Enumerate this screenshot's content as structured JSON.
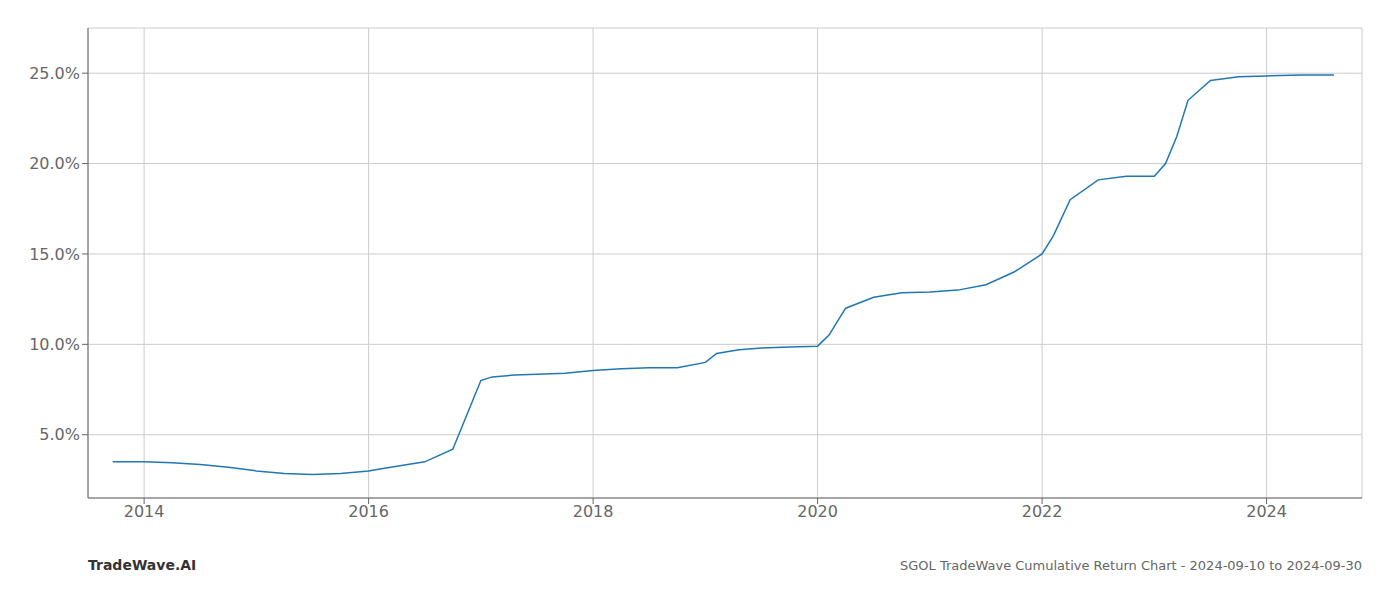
{
  "chart_data": {
    "type": "line",
    "title": "SGOL TradeWave Cumulative Return Chart - 2024-09-10 to 2024-09-30",
    "annotations": [
      "TradeWave.AI"
    ],
    "color": "#2077b4",
    "grid": true,
    "x": [
      2013.72,
      2014.0,
      2014.25,
      2014.5,
      2014.75,
      2015.0,
      2015.25,
      2015.5,
      2015.75,
      2016.0,
      2016.1,
      2016.5,
      2016.75,
      2017.0,
      2017.1,
      2017.3,
      2017.5,
      2017.75,
      2018.0,
      2018.25,
      2018.5,
      2018.75,
      2019.0,
      2019.1,
      2019.3,
      2019.5,
      2019.75,
      2020.0,
      2020.1,
      2020.25,
      2020.5,
      2020.75,
      2021.0,
      2021.25,
      2021.5,
      2021.75,
      2022.0,
      2022.1,
      2022.25,
      2022.5,
      2022.75,
      2023.0,
      2023.1,
      2023.2,
      2023.3,
      2023.5,
      2023.75,
      2024.0,
      2024.3,
      2024.6
    ],
    "values": [
      3.5,
      3.5,
      3.45,
      3.35,
      3.2,
      3.0,
      2.85,
      2.8,
      2.85,
      3.0,
      3.1,
      3.5,
      4.2,
      8.0,
      8.2,
      8.3,
      8.35,
      8.4,
      8.55,
      8.65,
      8.7,
      8.7,
      9.0,
      9.5,
      9.7,
      9.8,
      9.85,
      9.9,
      10.5,
      12.0,
      12.6,
      12.85,
      12.9,
      13.0,
      13.3,
      14.0,
      15.0,
      16.0,
      18.0,
      19.1,
      19.3,
      19.3,
      20.0,
      21.5,
      23.5,
      24.6,
      24.8,
      24.85,
      24.9,
      24.9
    ],
    "xlim": [
      2013.5,
      2024.85
    ],
    "ylim": [
      1.5,
      27.5
    ],
    "xticks": [
      2014,
      2016,
      2018,
      2020,
      2022,
      2024
    ],
    "yticks": [
      {
        "value": 5.0,
        "label": "5.0%"
      },
      {
        "value": 10.0,
        "label": "10.0%"
      },
      {
        "value": 15.0,
        "label": "15.0%"
      },
      {
        "value": 20.0,
        "label": "20.0%"
      },
      {
        "value": 25.0,
        "label": "25.0%"
      }
    ]
  }
}
